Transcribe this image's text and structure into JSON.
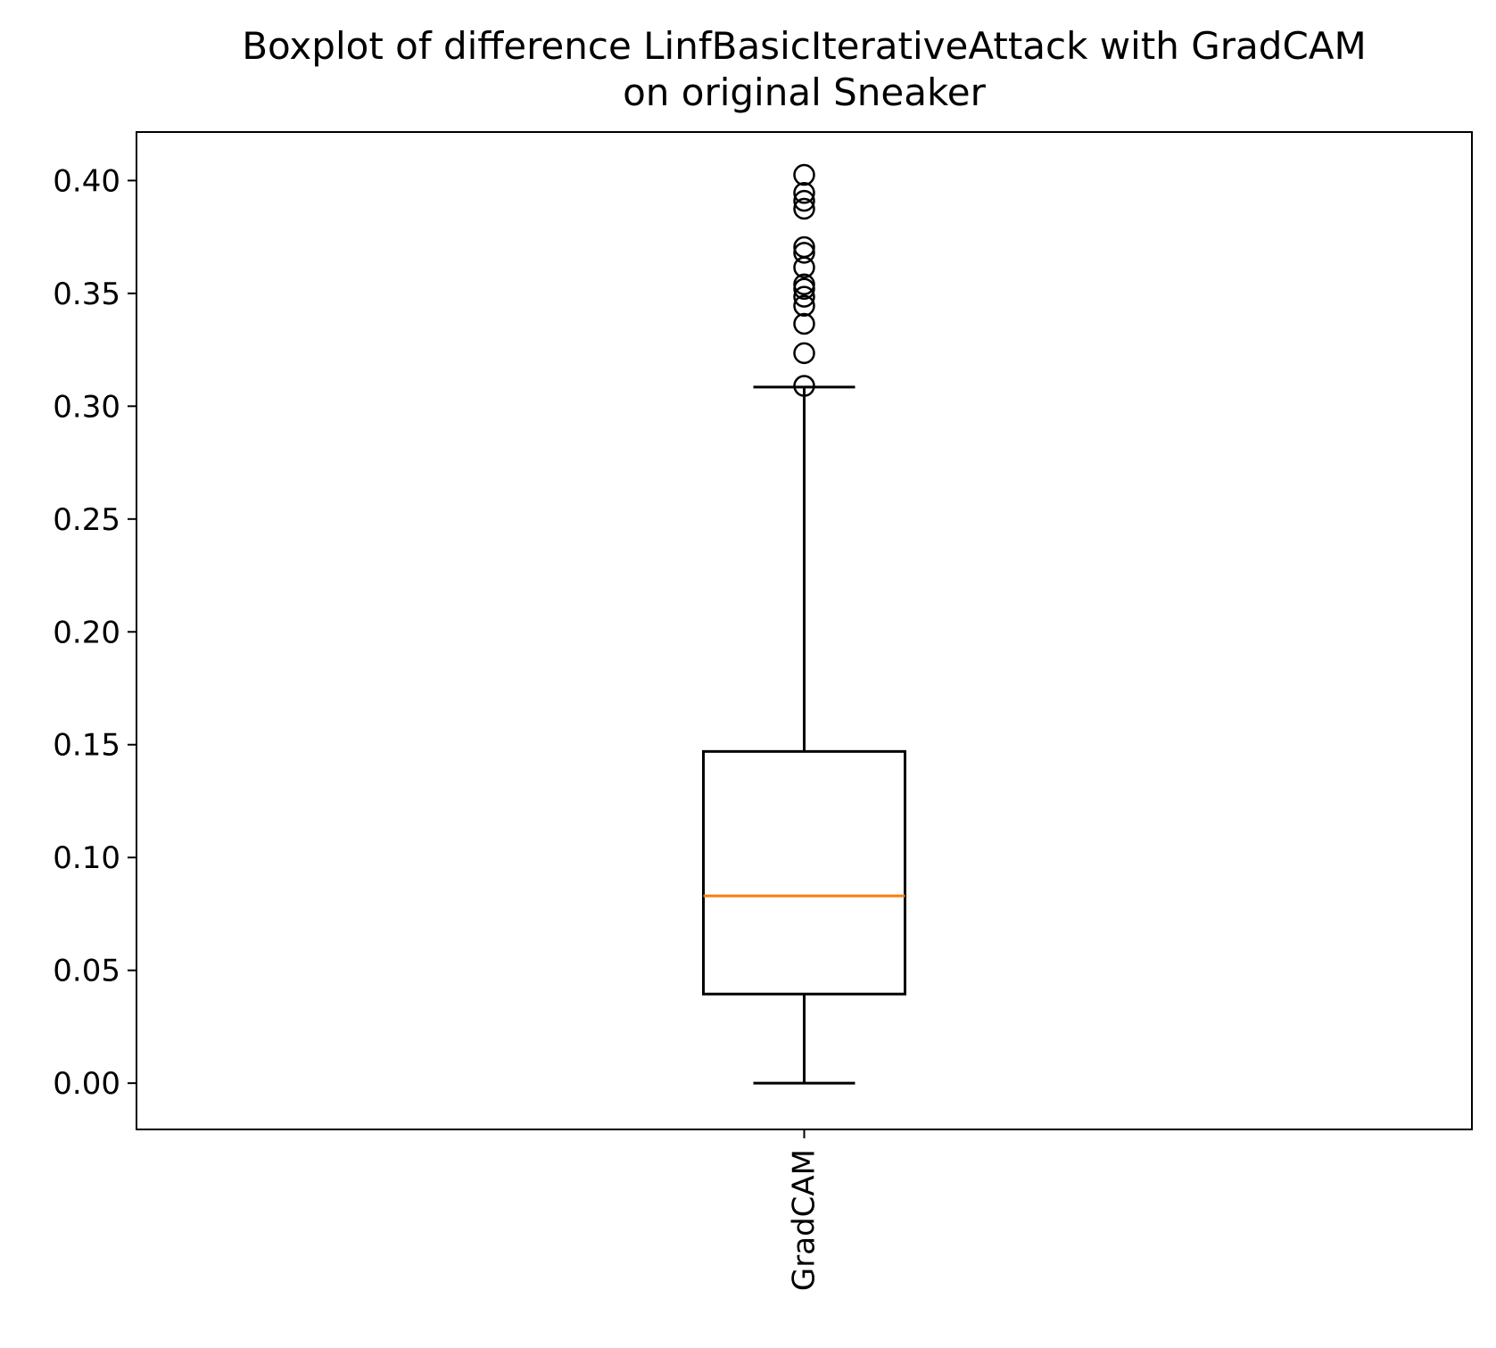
{
  "chart_data": {
    "type": "box",
    "title_lines": [
      "Boxplot of difference LinfBasicIterativeAttack with GradCAM",
      "on original Sneaker"
    ],
    "xlabel": "",
    "ylabel": "",
    "categories": [
      "GradCAM"
    ],
    "x_tick_rotation": 90,
    "ylim": [
      -0.0205,
      0.4215
    ],
    "yticks": [
      0.0,
      0.05,
      0.1,
      0.15,
      0.2,
      0.25,
      0.3,
      0.35,
      0.4
    ],
    "ytick_labels": [
      "0.00",
      "0.05",
      "0.10",
      "0.15",
      "0.20",
      "0.25",
      "0.30",
      "0.35",
      "0.40"
    ],
    "grid": false,
    "boxes": [
      {
        "name": "GradCAM",
        "whisker_low": 0.0,
        "q1": 0.0395,
        "median": 0.083,
        "q3": 0.147,
        "whisker_high": 0.3085,
        "outliers": [
          0.309,
          0.3235,
          0.3365,
          0.3445,
          0.3485,
          0.352,
          0.354,
          0.3615,
          0.368,
          0.3705,
          0.3875,
          0.391,
          0.3945,
          0.4025
        ]
      }
    ],
    "colors": {
      "box": "#000000",
      "median": "#ff7f0e",
      "outlier": "#000000"
    }
  }
}
